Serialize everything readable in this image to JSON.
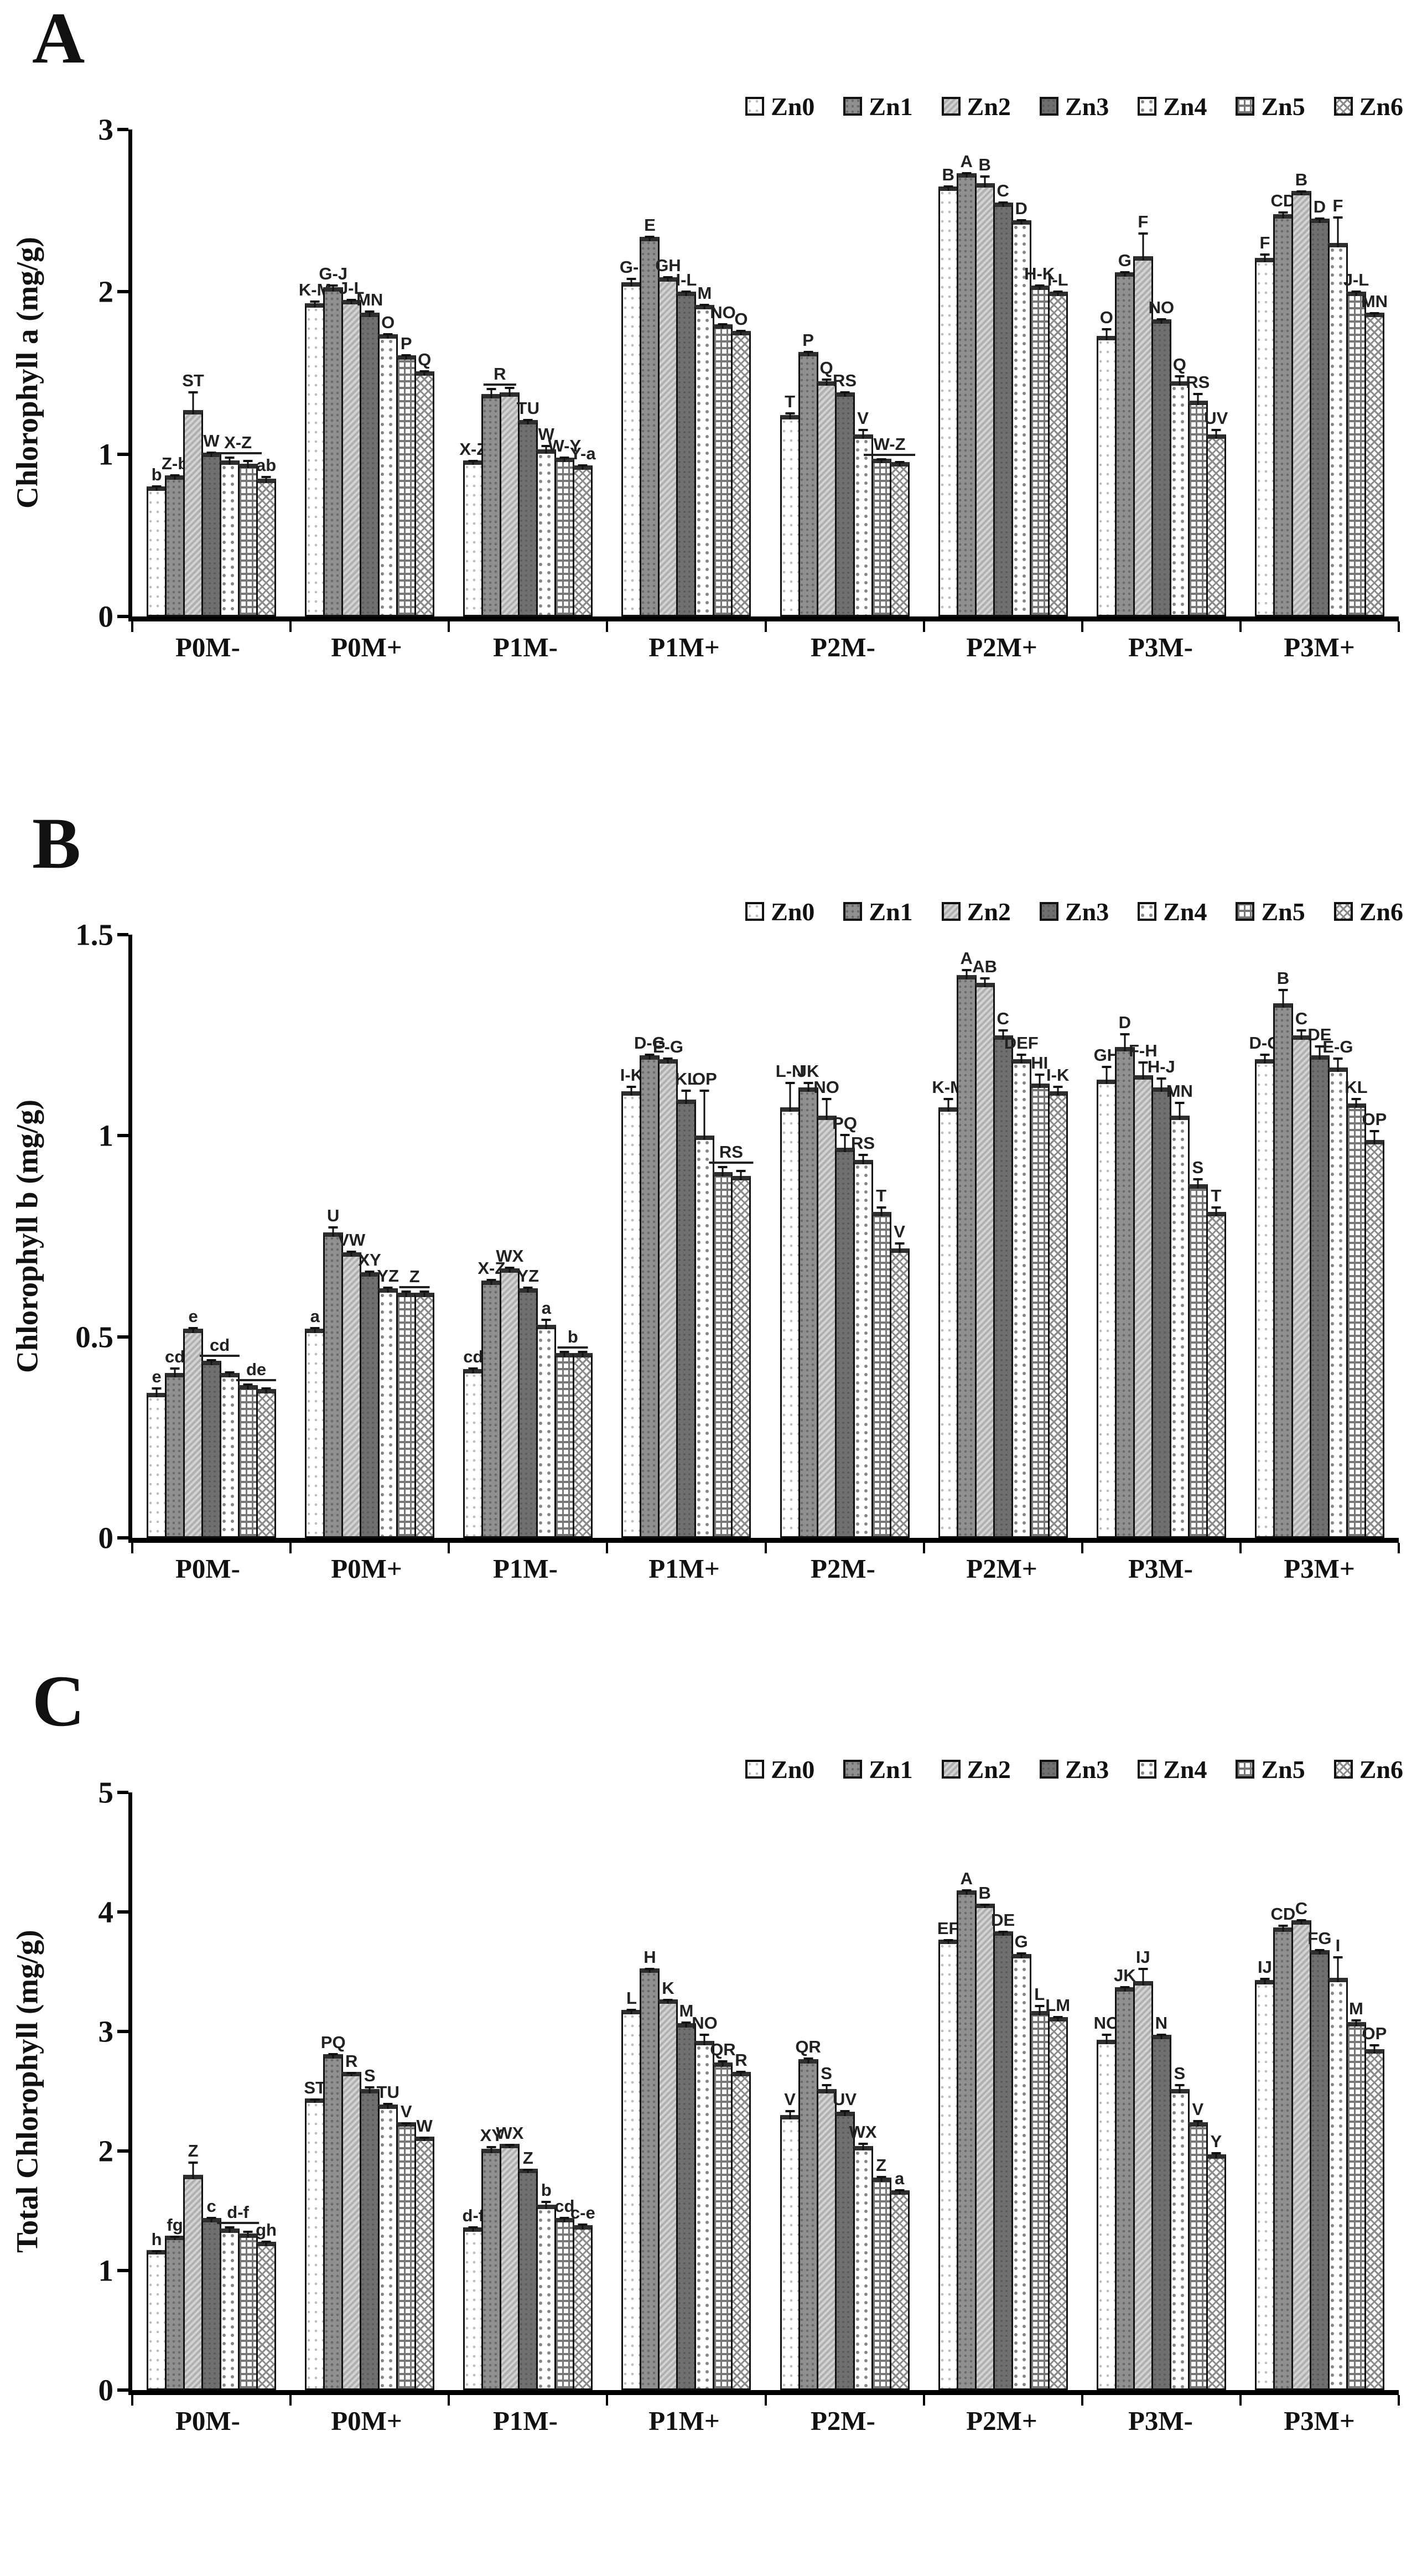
{
  "chart_data": [
    {
      "type": "bar",
      "letter": "A",
      "ylabel": "Chlorophyll a (mg/g)",
      "ymax": 3,
      "ytick_values": [
        0,
        1,
        2,
        3
      ],
      "ytick_labels": [
        "0",
        "1",
        "2",
        "3"
      ],
      "grid": false,
      "legend_position": "top-right",
      "series": [
        "Zn0",
        "Zn1",
        "Zn2",
        "Zn3",
        "Zn4",
        "Zn5",
        "Zn6"
      ],
      "groups": [
        {
          "name": "P0M-",
          "values": [
            0.8,
            0.87,
            1.27,
            1.01,
            0.96,
            0.94,
            0.85
          ],
          "errs": [
            0.02,
            0.02,
            0.13,
            0.02,
            0.04,
            0.04,
            0.03
          ],
          "letters": [
            "b",
            "Z-b",
            "ST",
            "W",
            "X-Z",
            "",
            "ab"
          ],
          "spans": [
            [
              4,
              2
            ]
          ]
        },
        {
          "name": "P0M+",
          "values": [
            1.93,
            2.03,
            1.95,
            1.87,
            1.74,
            1.61,
            1.51
          ],
          "errs": [
            0.03,
            0.03,
            0.02,
            0.03,
            0.02,
            0.02,
            0.02
          ],
          "letters": [
            "K-M",
            "G-J",
            "J-L",
            "MN",
            "O",
            "P",
            "Q"
          ],
          "spans": []
        },
        {
          "name": "P1M-",
          "values": [
            0.96,
            1.37,
            1.38,
            1.21,
            1.03,
            0.98,
            0.93
          ],
          "errs": [
            0.02,
            0.05,
            0.05,
            0.02,
            0.04,
            0.02,
            0.02
          ],
          "letters": [
            "X-Z",
            "R",
            "",
            "TU",
            "W",
            "W-Y",
            "Y-a"
          ],
          "spans": [
            [
              1,
              2
            ]
          ]
        },
        {
          "name": "P1M+",
          "values": [
            2.06,
            2.34,
            2.09,
            2.0,
            1.92,
            1.8,
            1.76
          ],
          "errs": [
            0.04,
            0.02,
            0.02,
            0.02,
            0.02,
            0.02,
            0.02
          ],
          "letters": [
            "G-I",
            "E",
            "GH",
            "I-L",
            "M",
            "NO",
            "O"
          ],
          "spans": []
        },
        {
          "name": "P2M-",
          "values": [
            1.24,
            1.63,
            1.45,
            1.38,
            1.12,
            0.97,
            0.95
          ],
          "errs": [
            0.03,
            0.02,
            0.03,
            0.02,
            0.05,
            0.02,
            0.02
          ],
          "letters": [
            "T",
            "P",
            "Q",
            "RS",
            "V",
            "W-Z",
            ""
          ],
          "spans": [
            [
              5,
              2
            ]
          ]
        },
        {
          "name": "P2M+",
          "values": [
            2.65,
            2.73,
            2.67,
            2.55,
            2.44,
            2.04,
            2.0
          ],
          "errs": [
            0.02,
            0.02,
            0.06,
            0.02,
            0.02,
            0.02,
            0.02
          ],
          "letters": [
            "B",
            "A",
            "B",
            "C",
            "D",
            "H-K",
            "I-L"
          ],
          "spans": []
        },
        {
          "name": "P3M-",
          "values": [
            1.73,
            2.12,
            2.22,
            1.83,
            1.45,
            1.33,
            1.12
          ],
          "errs": [
            0.06,
            0.02,
            0.16,
            0.02,
            0.05,
            0.06,
            0.05
          ],
          "letters": [
            "O",
            "G",
            "F",
            "NO",
            "Q",
            "RS",
            "UV"
          ],
          "spans": []
        },
        {
          "name": "P3M+",
          "values": [
            2.21,
            2.48,
            2.62,
            2.45,
            2.3,
            2.0,
            1.87
          ],
          "errs": [
            0.04,
            0.03,
            0.02,
            0.02,
            0.18,
            0.02,
            0.02
          ],
          "letters": [
            "F",
            "CD",
            "B",
            "D",
            "F",
            "J-L",
            "MN"
          ],
          "spans": []
        }
      ]
    },
    {
      "type": "bar",
      "letter": "B",
      "ylabel": "Chlorophyll b (mg/g)",
      "ymax": 1.5,
      "ytick_values": [
        0,
        0.5,
        1,
        1.5
      ],
      "ytick_labels": [
        "0",
        "0.5",
        "1",
        "1.5"
      ],
      "grid": false,
      "legend_position": "top-right",
      "series": [
        "Zn0",
        "Zn1",
        "Zn2",
        "Zn3",
        "Zn4",
        "Zn5",
        "Zn6"
      ],
      "groups": [
        {
          "name": "P0M-",
          "values": [
            0.36,
            0.41,
            0.52,
            0.44,
            0.41,
            0.38,
            0.37
          ],
          "errs": [
            0.02,
            0.02,
            0.01,
            0.01,
            0.01,
            0.01,
            0.01
          ],
          "letters": [
            "e",
            "cd",
            "e",
            "cd",
            "",
            "de",
            ""
          ],
          "spans": [
            [
              3,
              2
            ],
            [
              5,
              2
            ]
          ]
        },
        {
          "name": "P0M+",
          "values": [
            0.52,
            0.76,
            0.71,
            0.66,
            0.62,
            0.61,
            0.61
          ],
          "errs": [
            0.01,
            0.02,
            0.01,
            0.01,
            0.01,
            0.01,
            0.01
          ],
          "letters": [
            "a",
            "U",
            "VW",
            "XY",
            "YZ",
            "Z",
            ""
          ],
          "spans": [
            [
              5,
              2
            ]
          ]
        },
        {
          "name": "P1M-",
          "values": [
            0.42,
            0.64,
            0.67,
            0.62,
            0.53,
            0.46,
            0.46
          ],
          "errs": [
            0.01,
            0.01,
            0.01,
            0.01,
            0.02,
            0.01,
            0.01
          ],
          "letters": [
            "cd",
            "X-Z",
            "WX",
            "YZ",
            "a",
            "b",
            ""
          ],
          "spans": [
            [
              5,
              2
            ]
          ]
        },
        {
          "name": "P1M+",
          "values": [
            1.11,
            1.2,
            1.19,
            1.09,
            1.0,
            0.91,
            0.9
          ],
          "errs": [
            0.02,
            0.01,
            0.01,
            0.03,
            0.12,
            0.02,
            0.02
          ],
          "letters": [
            "I-K",
            "D-G",
            "E-G",
            "KL",
            "OP",
            "RS",
            ""
          ],
          "spans": [
            [
              5,
              2
            ]
          ]
        },
        {
          "name": "P2M-",
          "values": [
            1.07,
            1.12,
            1.05,
            0.97,
            0.94,
            0.81,
            0.72
          ],
          "errs": [
            0.07,
            0.02,
            0.05,
            0.04,
            0.02,
            0.02,
            0.02
          ],
          "letters": [
            "L-N",
            "JK",
            "NO",
            "PQ",
            "RS",
            "T",
            "V"
          ],
          "spans": []
        },
        {
          "name": "P2M+",
          "values": [
            1.07,
            1.4,
            1.38,
            1.25,
            1.19,
            1.13,
            1.11
          ],
          "errs": [
            0.03,
            0.02,
            0.02,
            0.02,
            0.02,
            0.03,
            0.02
          ],
          "letters": [
            "K-M",
            "A",
            "AB",
            "C",
            "DEF",
            "HI",
            "I-K"
          ],
          "spans": []
        },
        {
          "name": "P3M-",
          "values": [
            1.14,
            1.22,
            1.15,
            1.12,
            1.05,
            0.88,
            0.81
          ],
          "errs": [
            0.04,
            0.04,
            0.04,
            0.03,
            0.04,
            0.02,
            0.02
          ],
          "letters": [
            "GH",
            "D",
            "F-H",
            "H-J",
            "MN",
            "S",
            "T"
          ],
          "spans": []
        },
        {
          "name": "P3M+",
          "values": [
            1.19,
            1.33,
            1.25,
            1.2,
            1.17,
            1.08,
            0.99
          ],
          "errs": [
            0.02,
            0.04,
            0.02,
            0.03,
            0.03,
            0.02,
            0.03
          ],
          "letters": [
            "D-G",
            "B",
            "C",
            "DE",
            "E-G",
            "KL",
            "OP"
          ],
          "spans": []
        }
      ]
    },
    {
      "type": "bar",
      "letter": "C",
      "ylabel": "Total Chlorophyll (mg/g)",
      "ymax": 5,
      "ytick_values": [
        0,
        1,
        2,
        3,
        4,
        5
      ],
      "ytick_labels": [
        "0",
        "1",
        "2",
        "3",
        "4",
        "5"
      ],
      "grid": false,
      "legend_position": "top-right",
      "series": [
        "Zn0",
        "Zn1",
        "Zn2",
        "Zn3",
        "Zn4",
        "Zn5",
        "Zn6"
      ],
      "groups": [
        {
          "name": "P0M-",
          "values": [
            1.17,
            1.29,
            1.8,
            1.44,
            1.35,
            1.31,
            1.24
          ],
          "errs": [
            0.02,
            0.02,
            0.13,
            0.03,
            0.04,
            0.04,
            0.03
          ],
          "letters": [
            "h",
            "fg",
            "Z",
            "c",
            "d-f",
            "",
            "gh"
          ],
          "spans": [
            [
              4,
              2
            ]
          ]
        },
        {
          "name": "P0M+",
          "values": [
            2.44,
            2.81,
            2.66,
            2.52,
            2.39,
            2.24,
            2.12
          ],
          "errs": [
            0.02,
            0.03,
            0.02,
            0.04,
            0.03,
            0.02,
            0.02
          ],
          "letters": [
            "ST",
            "PQ",
            "R",
            "S",
            "TU",
            "V",
            "W"
          ],
          "spans": []
        },
        {
          "name": "P1M-",
          "values": [
            1.36,
            2.02,
            2.06,
            1.85,
            1.55,
            1.44,
            1.38
          ],
          "errs": [
            0.03,
            0.04,
            0.02,
            0.02,
            0.05,
            0.03,
            0.03
          ],
          "letters": [
            "d-f",
            "XY",
            "WX",
            "Z",
            "b",
            "cd",
            "c-e"
          ],
          "spans": []
        },
        {
          "name": "P1M+",
          "values": [
            3.18,
            3.53,
            3.27,
            3.07,
            2.92,
            2.74,
            2.66
          ],
          "errs": [
            0.03,
            0.02,
            0.02,
            0.03,
            0.08,
            0.04,
            0.03
          ],
          "letters": [
            "L",
            "H",
            "K",
            "M",
            "NO",
            "QR",
            "R"
          ],
          "spans": []
        },
        {
          "name": "P2M-",
          "values": [
            2.3,
            2.77,
            2.52,
            2.33,
            2.04,
            1.78,
            1.67
          ],
          "errs": [
            0.06,
            0.03,
            0.06,
            0.03,
            0.05,
            0.03,
            0.03
          ],
          "letters": [
            "V",
            "QR",
            "S",
            "UV",
            "WX",
            "Z",
            "a"
          ],
          "spans": []
        },
        {
          "name": "P2M+",
          "values": [
            3.77,
            4.18,
            4.07,
            3.84,
            3.65,
            3.17,
            3.12
          ],
          "errs": [
            0.02,
            0.03,
            0.02,
            0.02,
            0.03,
            0.07,
            0.03
          ],
          "letters": [
            "EF",
            "A",
            "B",
            "DE",
            "G",
            "L",
            "LM"
          ],
          "spans": []
        },
        {
          "name": "P3M-",
          "values": [
            2.93,
            3.37,
            3.42,
            2.97,
            2.52,
            2.24,
            1.97
          ],
          "errs": [
            0.07,
            0.03,
            0.13,
            0.03,
            0.06,
            0.04,
            0.04
          ],
          "letters": [
            "NO",
            "JK",
            "IJ",
            "N",
            "S",
            "V",
            "Y"
          ],
          "spans": []
        },
        {
          "name": "P3M+",
          "values": [
            3.43,
            3.87,
            3.93,
            3.68,
            3.45,
            3.08,
            2.85
          ],
          "errs": [
            0.04,
            0.04,
            0.03,
            0.03,
            0.2,
            0.04,
            0.06
          ],
          "letters": [
            "IJ",
            "CD",
            "C",
            "FG",
            "I",
            "M",
            "OP"
          ],
          "spans": []
        }
      ]
    }
  ]
}
